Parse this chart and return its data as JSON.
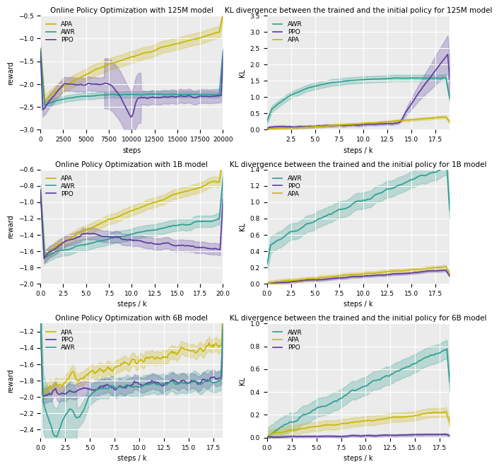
{
  "ppo_color": "#5b3a9e",
  "awr_color": "#2a9d8f",
  "apa_color": "#c8b400",
  "fig_bg": "#ffffff",
  "ax_bg": "#ebebeb",
  "grid_color": "#ffffff",
  "titles": {
    "r125M": "Online Policy Optimization with 125M model",
    "r1B": "Online Policy Optimization with 1B model",
    "r6B": "Online Policy Optimization with 6B model",
    "kl125M": "KL divergence between the trained and the initial policy for 125M model",
    "kl1B": "KL divergence between the trained and the initial policy for 1B model",
    "kl6B": "KL divergence between the trained and the initial policy for 6B model"
  },
  "xlabels": {
    "r125M": "steps",
    "r1B": "steps / k",
    "r6B": "steps / k",
    "kl125M": "steps / k",
    "kl1B": "steps / k",
    "kl6B": "steps / k"
  },
  "ylabels": {
    "reward": "reward",
    "kl": "KL"
  }
}
